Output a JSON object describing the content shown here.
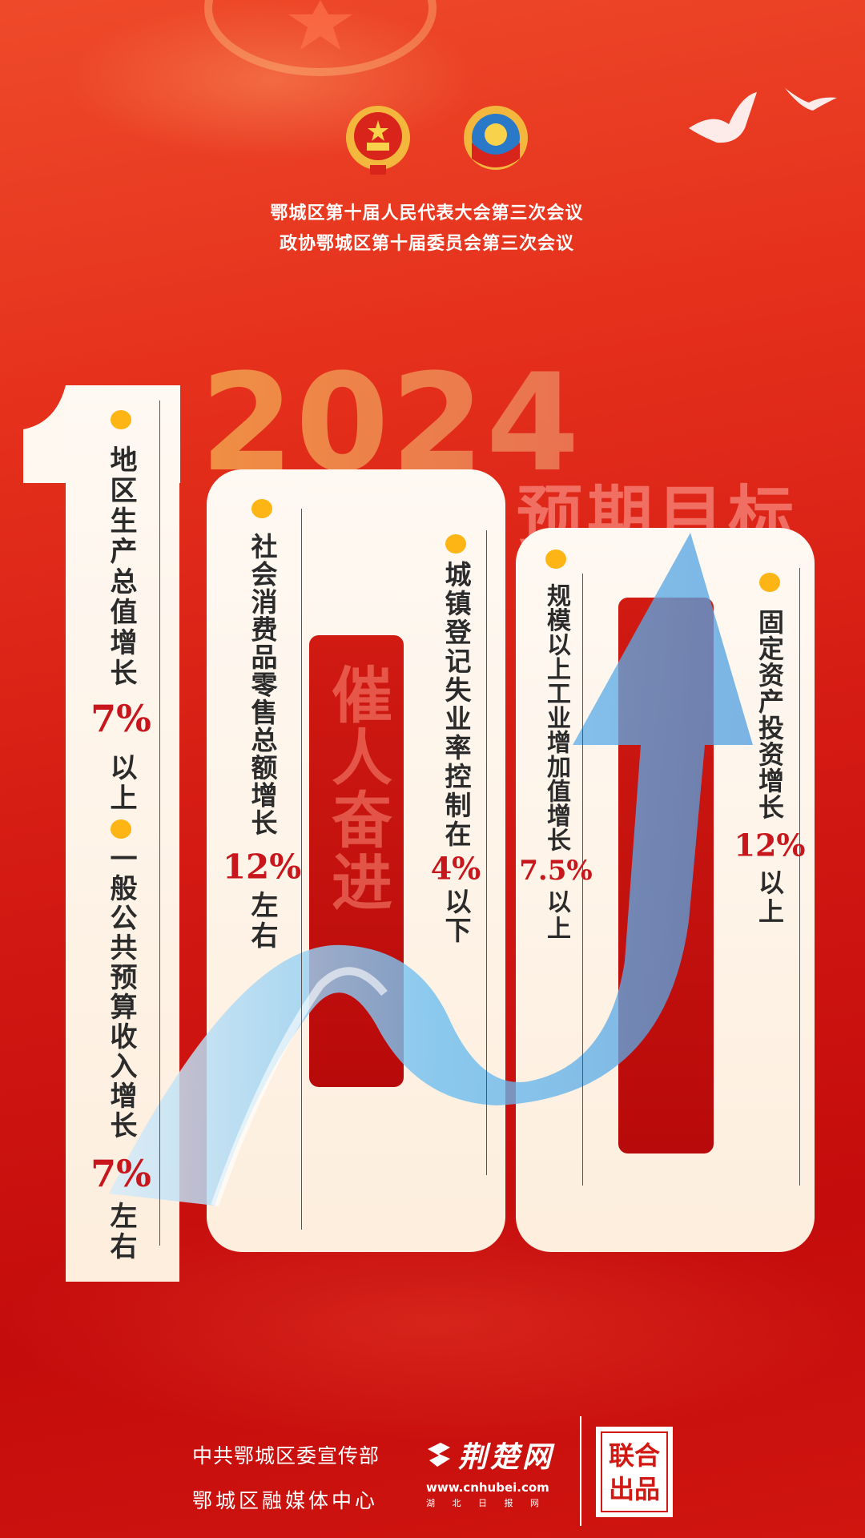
{
  "header": {
    "line1": "鄂城区第十届人民代表大会第三次会议",
    "line2": "政协鄂城区第十届委员会第三次会议",
    "emblems": [
      "national-emblem-icon",
      "cppcc-emblem-icon"
    ]
  },
  "hero": {
    "year": "2024",
    "subtitle": "预期目标",
    "big_number": "100",
    "slogan": "催人奋进"
  },
  "targets": [
    {
      "label": "地区生产总值增长",
      "value": "7%",
      "suffix": "以上"
    },
    {
      "label": "一般公共预算收入增长",
      "value": "7%",
      "suffix": "左右"
    },
    {
      "label": "社会消费品零售总额增长",
      "value": "12%",
      "suffix": "左右"
    },
    {
      "label": "城镇登记失业率控制在",
      "value": "4%",
      "suffix": "以下"
    },
    {
      "label": "规模以上工业增加值增长",
      "value": "7.5%",
      "suffix": "以上"
    },
    {
      "label": "固定资产投资增长",
      "value": "12%",
      "suffix": "以上"
    }
  ],
  "footer": {
    "org1": "中共鄂城区委宣传部",
    "org2": "鄂城区融媒体中心",
    "logo_name": "荆楚网",
    "logo_url": "www.cnhubei.com",
    "logo_sub": "湖 北 日 报 网",
    "stamp_line1": "联合",
    "stamp_line2": "出品"
  },
  "colors": {
    "background": "#d21812",
    "accent": "#c8161d",
    "dot": "#fdb515",
    "card": "#fdf3e8",
    "arrow": "#6fbff0"
  }
}
